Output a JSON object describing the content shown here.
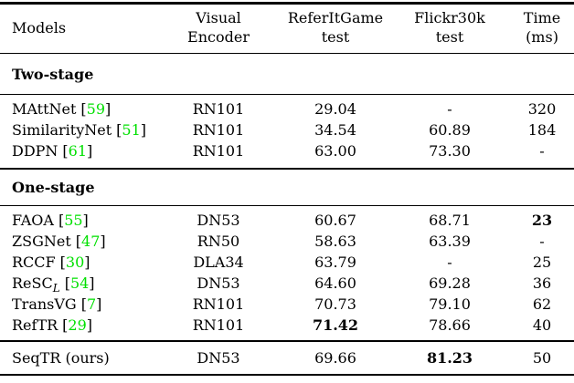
{
  "colors": {
    "citation_green": "#00e000",
    "text": "#000000",
    "background": "#ffffff"
  },
  "citation": {
    "open": "[",
    "close": "]"
  },
  "header": {
    "models": "Models",
    "encoder": "Visual\nEncoder",
    "referit": "ReferItGame\ntest",
    "flickr": "Flickr30k\ntest",
    "time": "Time\n(ms)"
  },
  "sections": [
    {
      "label": "Two-stage",
      "rows": [
        {
          "model": "MAttNet",
          "cite": "59",
          "encoder": "RN101",
          "referit": "29.04",
          "flickr": "-",
          "time": "320"
        },
        {
          "model": "SimilarityNet",
          "cite": "51",
          "encoder": "RN101",
          "referit": "34.54",
          "flickr": "60.89",
          "time": "184"
        },
        {
          "model": "DDPN",
          "cite": "61",
          "encoder": "RN101",
          "referit": "63.00",
          "flickr": "73.30",
          "time": "-"
        }
      ]
    },
    {
      "label": "One-stage",
      "rows": [
        {
          "model": "FAOA",
          "cite": "55",
          "encoder": "DN53",
          "referit": "60.67",
          "flickr": "68.71",
          "time": "23"
        },
        {
          "model": "ZSGNet",
          "cite": "47",
          "encoder": "RN50",
          "referit": "58.63",
          "flickr": "63.39",
          "time": "-"
        },
        {
          "model": "RCCF",
          "cite": "30",
          "encoder": "DLA34",
          "referit": "63.79",
          "flickr": "-",
          "time": "25"
        },
        {
          "model": "ReSC",
          "model_sub": "L",
          "cite": "54",
          "encoder": "DN53",
          "referit": "64.60",
          "flickr": "69.28",
          "time": "36"
        },
        {
          "model": "TransVG",
          "cite": "7",
          "encoder": "RN101",
          "referit": "70.73",
          "flickr": "79.10",
          "time": "62"
        },
        {
          "model": "RefTR",
          "cite": "29",
          "encoder": "RN101",
          "referit": "71.42",
          "flickr": "78.66",
          "time": "40"
        }
      ]
    }
  ],
  "footer_row": {
    "model": "SeqTR (ours)",
    "encoder": "DN53",
    "referit": "69.66",
    "flickr": "81.23",
    "time": "50"
  },
  "bold_cells": [
    {
      "row": "FAOA",
      "column": "time",
      "value": "23"
    },
    {
      "row": "RefTR",
      "column": "referit",
      "value": "71.42"
    },
    {
      "row": "SeqTR (ours)",
      "column": "flickr",
      "value": "81.23"
    }
  ]
}
